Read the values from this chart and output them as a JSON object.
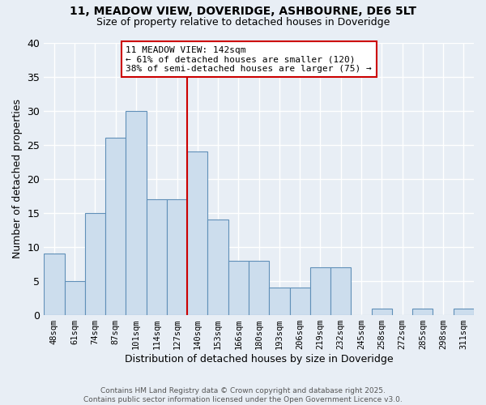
{
  "title_line1": "11, MEADOW VIEW, DOVERIDGE, ASHBOURNE, DE6 5LT",
  "title_line2": "Size of property relative to detached houses in Doveridge",
  "xlabel": "Distribution of detached houses by size in Doveridge",
  "ylabel": "Number of detached properties",
  "categories": [
    "48sqm",
    "61sqm",
    "74sqm",
    "87sqm",
    "101sqm",
    "114sqm",
    "127sqm",
    "140sqm",
    "153sqm",
    "166sqm",
    "180sqm",
    "193sqm",
    "206sqm",
    "219sqm",
    "232sqm",
    "245sqm",
    "258sqm",
    "272sqm",
    "285sqm",
    "298sqm",
    "311sqm"
  ],
  "values": [
    9,
    5,
    15,
    26,
    30,
    17,
    17,
    24,
    14,
    8,
    8,
    4,
    4,
    7,
    7,
    0,
    1,
    0,
    1,
    0,
    1
  ],
  "bar_color": "#ccdded",
  "bar_edge_color": "#6090b8",
  "vline_x_index": 7,
  "vline_color": "#cc0000",
  "annotation_text": "11 MEADOW VIEW: 142sqm\n← 61% of detached houses are smaller (120)\n38% of semi-detached houses are larger (75) →",
  "annotation_box_facecolor": "#ffffff",
  "annotation_box_edgecolor": "#cc0000",
  "ylim": [
    0,
    40
  ],
  "yticks": [
    0,
    5,
    10,
    15,
    20,
    25,
    30,
    35,
    40
  ],
  "bg_color": "#e8eef5",
  "grid_color": "#ffffff",
  "footer_text": "Contains HM Land Registry data © Crown copyright and database right 2025.\nContains public sector information licensed under the Open Government Licence v3.0."
}
